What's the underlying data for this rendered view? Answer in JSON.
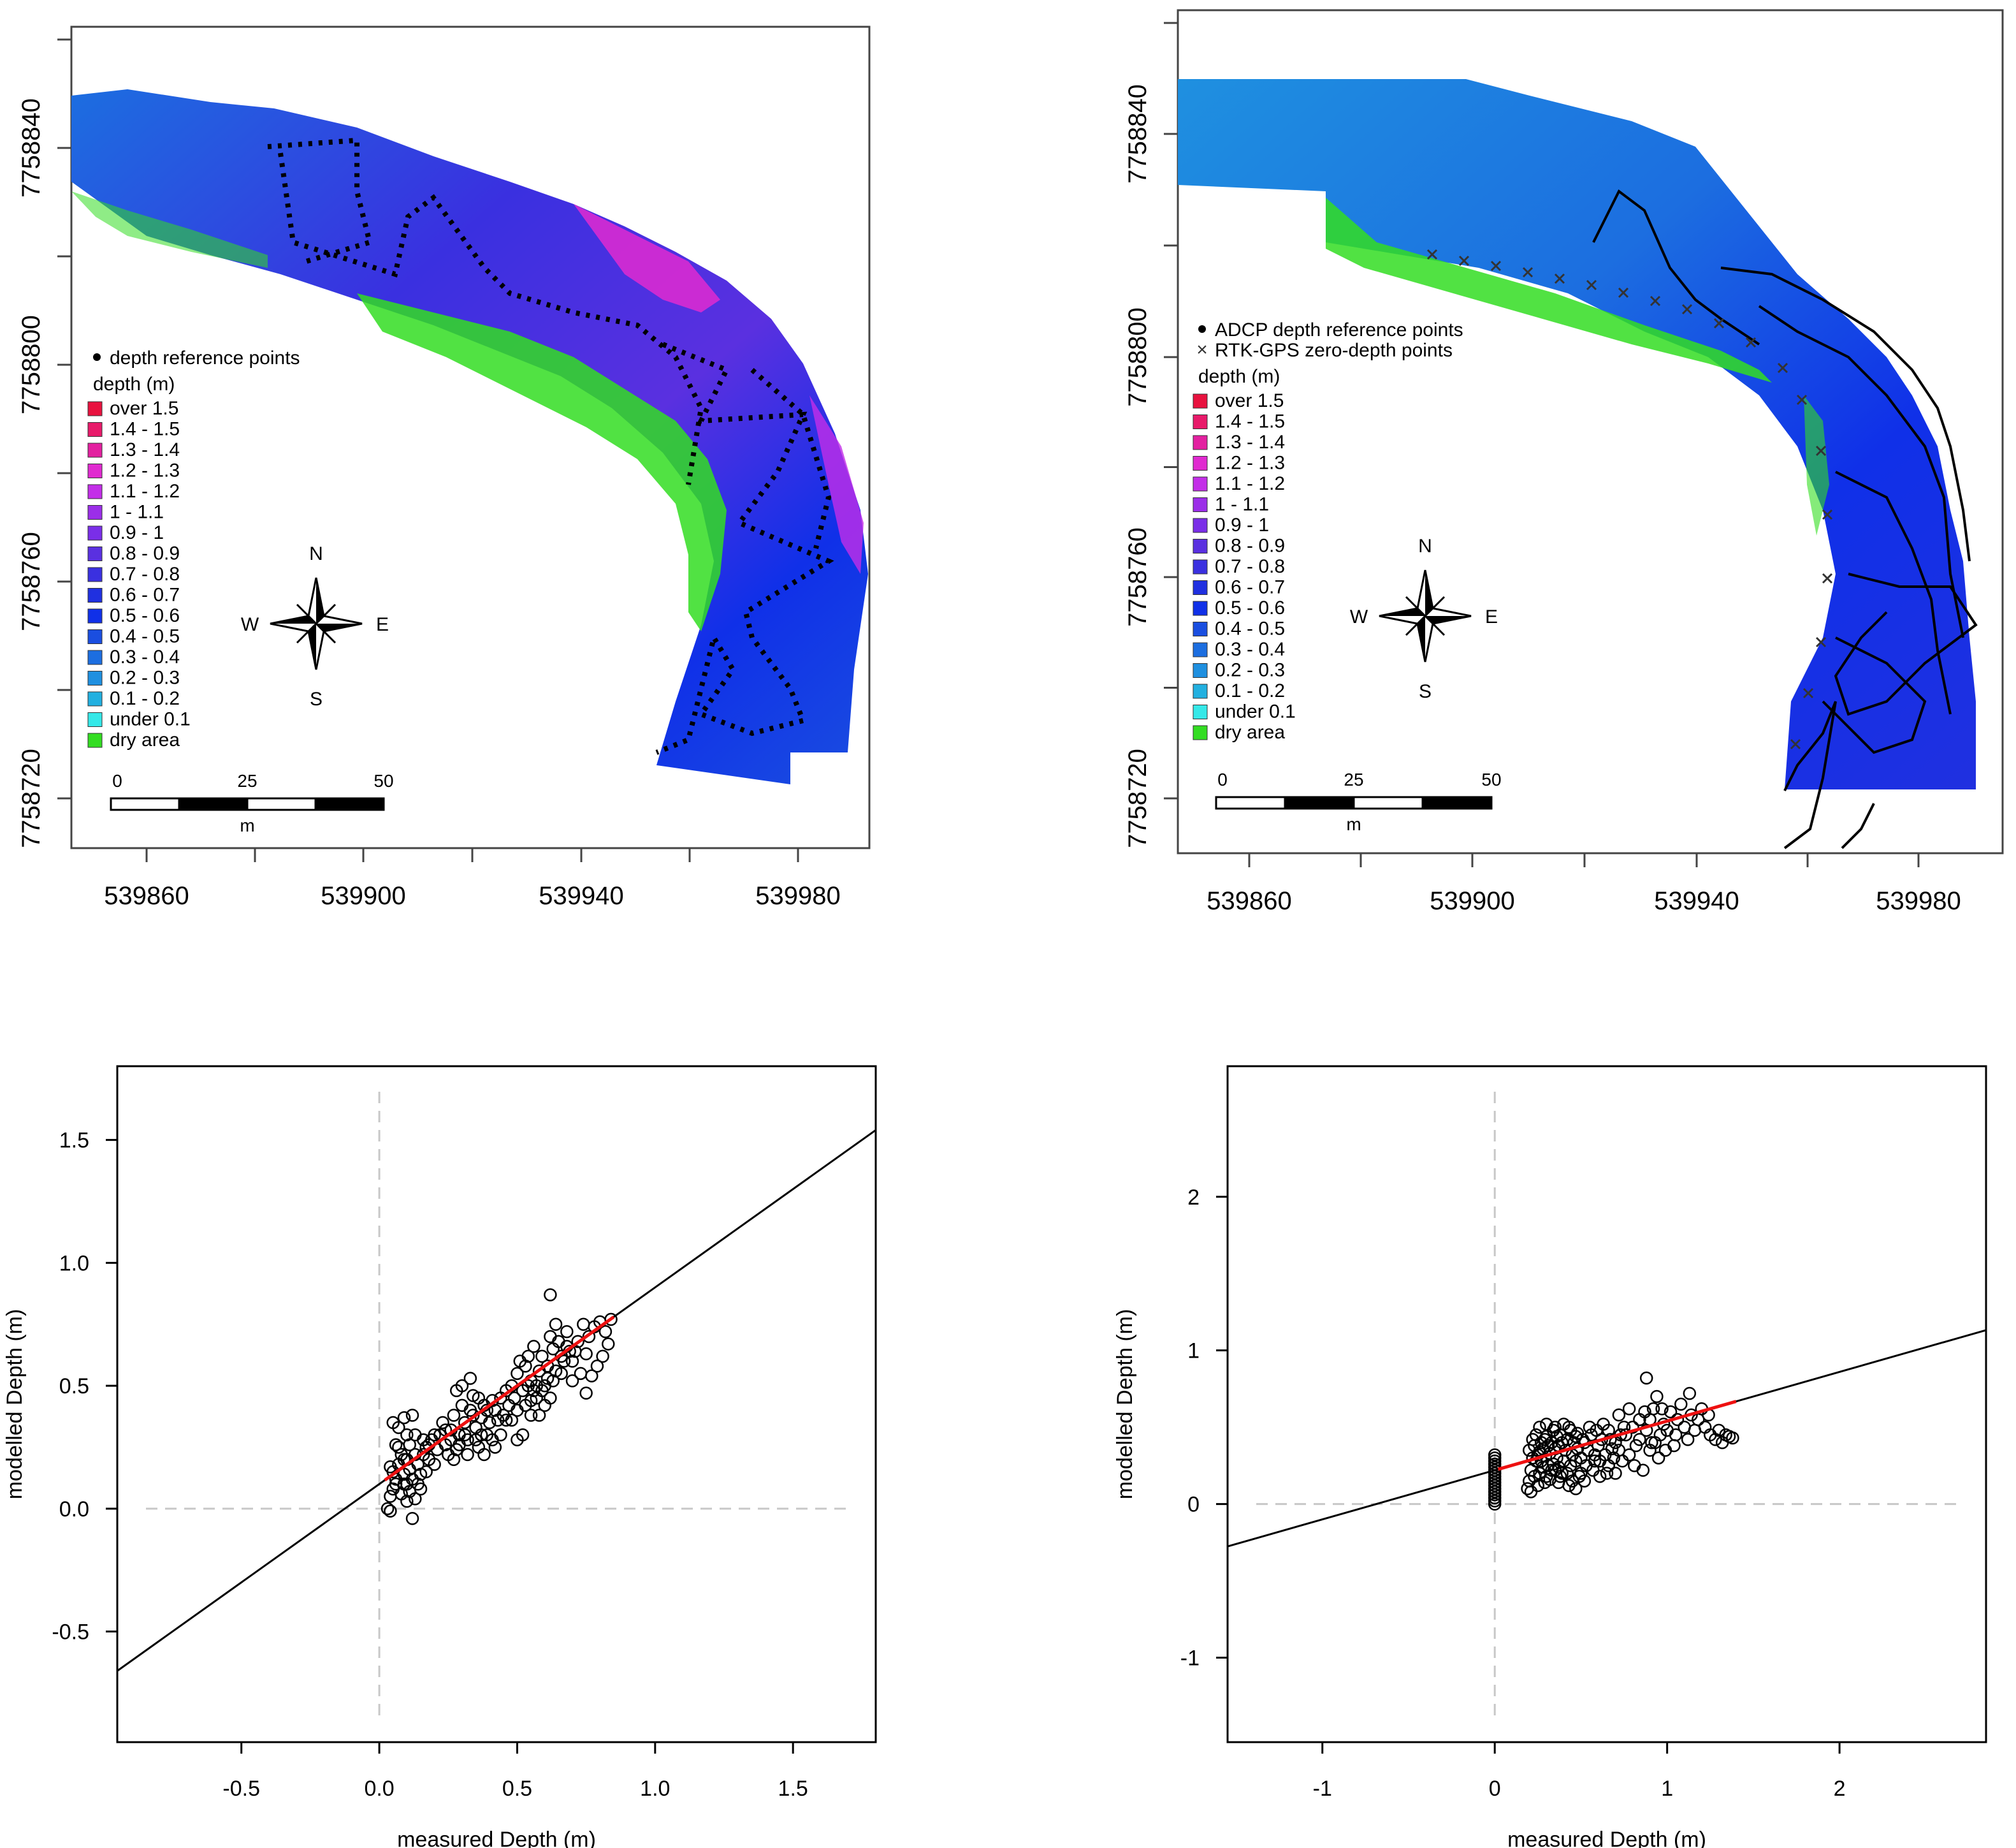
{
  "colors": {
    "over 1.5": "#e8123f",
    "1.4 - 1.5": "#e81a6a",
    "1.3 - 1.4": "#e320a0",
    "1.2 - 1.3": "#e02ad0",
    "1.1 - 1.2": "#c32ee8",
    "1 - 1.1": "#9b2ee8",
    "0.9 - 1": "#7a2ee8",
    "0.8 - 0.9": "#5a30e0",
    "0.7 - 0.8": "#3a30e0",
    "0.6 - 0.7": "#2030e0",
    "0.5 - 0.6": "#1030e8",
    "0.4 - 0.5": "#1a4ee0",
    "0.3 - 0.4": "#1c6ee0",
    "0.2 - 0.3": "#1f90e0",
    "0.1 - 0.2": "#22b0e0",
    "under 0.1": "#35e8e8",
    "dry area": "#33dd22",
    "fit_line": "#000000",
    "fit_segment": "#ee1111",
    "reference_lines": "#c8c8c8"
  },
  "maps": [
    {
      "id": "map-left",
      "legend_points": [
        "depth reference points"
      ],
      "legend_title": "depth (m)",
      "legend_items": [
        "over 1.5",
        "1.4 - 1.5",
        "1.3 - 1.4",
        "1.2 - 1.3",
        "1.1 - 1.2",
        "1 - 1.1",
        "0.9 - 1",
        "0.8 - 0.9",
        "0.7 - 0.8",
        "0.6 - 0.7",
        "0.5 - 0.6",
        "0.4 - 0.5",
        "0.3 - 0.4",
        "0.2 - 0.3",
        "0.1 - 0.2",
        "under 0.1",
        "dry area"
      ],
      "compass": {
        "n": "N",
        "s": "S",
        "e": "E",
        "w": "W"
      },
      "scalebar": {
        "labels": [
          "0",
          "25",
          "50"
        ],
        "unit": "m"
      },
      "x_ticks": [
        "539860",
        "539900",
        "539940",
        "539980"
      ],
      "y_ticks": [
        "7758720",
        "7758760",
        "7758800",
        "7758840"
      ]
    },
    {
      "id": "map-right",
      "legend_points": [
        "ADCP depth reference points",
        "RTK-GPS zero-depth points"
      ],
      "legend_title": "depth (m)",
      "legend_items": [
        "over 1.5",
        "1.4 - 1.5",
        "1.3 - 1.4",
        "1.2 - 1.3",
        "1.1 - 1.2",
        "1 - 1.1",
        "0.9 - 1",
        "0.8 - 0.9",
        "0.7 - 0.8",
        "0.6 - 0.7",
        "0.5 - 0.6",
        "0.4 - 0.5",
        "0.3 - 0.4",
        "0.2 - 0.3",
        "0.1 - 0.2",
        "under 0.1",
        "dry area"
      ],
      "compass": {
        "n": "N",
        "s": "S",
        "e": "E",
        "w": "W"
      },
      "scalebar": {
        "labels": [
          "0",
          "25",
          "50"
        ],
        "unit": "m"
      },
      "x_ticks": [
        "539860",
        "539900",
        "539940",
        "539980"
      ],
      "y_ticks": [
        "7758720",
        "7758760",
        "7758800",
        "7758840"
      ]
    }
  ],
  "chart_data": [
    {
      "type": "scatter",
      "title": "",
      "xlabel": "measured Depth (m)",
      "ylabel": "modelled Depth (m)",
      "xlim": [
        -0.95,
        1.8
      ],
      "ylim": [
        -0.95,
        1.8
      ],
      "x_ticks": [
        -0.5,
        0.0,
        0.5,
        1.0,
        1.5
      ],
      "y_ticks": [
        -0.5,
        0.0,
        0.5,
        1.0,
        1.5
      ],
      "x_tick_labels": [
        "-0.5",
        "0.0",
        "0.5",
        "1.0",
        "1.5"
      ],
      "y_tick_labels": [
        "-0.5",
        "0.0",
        "0.5",
        "1.0",
        "1.5"
      ],
      "fit_line": {
        "intercept": 0.1,
        "slope": 0.8
      },
      "fit_segment_x": [
        0.02,
        0.85
      ],
      "points": [
        [
          0.03,
          0.0
        ],
        [
          0.04,
          0.05
        ],
        [
          0.05,
          0.08
        ],
        [
          0.06,
          0.12
        ],
        [
          0.07,
          0.18
        ],
        [
          0.08,
          0.22
        ],
        [
          0.05,
          0.35
        ],
        [
          0.07,
          0.33
        ],
        [
          0.09,
          0.37
        ],
        [
          0.1,
          0.3
        ],
        [
          0.08,
          0.06
        ],
        [
          0.09,
          0.1
        ],
        [
          0.1,
          0.03
        ],
        [
          0.11,
          0.07
        ],
        [
          0.12,
          0.12
        ],
        [
          0.13,
          0.04
        ],
        [
          0.12,
          -0.04
        ],
        [
          0.14,
          0.1
        ],
        [
          0.1,
          0.2
        ],
        [
          0.11,
          0.26
        ],
        [
          0.12,
          0.38
        ],
        [
          0.13,
          0.3
        ],
        [
          0.14,
          0.18
        ],
        [
          0.15,
          0.14
        ],
        [
          0.16,
          0.22
        ],
        [
          0.17,
          0.25
        ],
        [
          0.18,
          0.2
        ],
        [
          0.19,
          0.28
        ],
        [
          0.2,
          0.18
        ],
        [
          0.21,
          0.24
        ],
        [
          0.06,
          0.26
        ],
        [
          0.04,
          0.17
        ],
        [
          0.09,
          0.14
        ],
        [
          0.15,
          0.08
        ],
        [
          0.17,
          0.15
        ],
        [
          0.22,
          0.3
        ],
        [
          0.23,
          0.35
        ],
        [
          0.24,
          0.26
        ],
        [
          0.25,
          0.22
        ],
        [
          0.26,
          0.32
        ],
        [
          0.27,
          0.38
        ],
        [
          0.28,
          0.24
        ],
        [
          0.29,
          0.3
        ],
        [
          0.3,
          0.42
        ],
        [
          0.31,
          0.35
        ],
        [
          0.32,
          0.28
        ],
        [
          0.33,
          0.4
        ],
        [
          0.34,
          0.46
        ],
        [
          0.35,
          0.33
        ],
        [
          0.36,
          0.25
        ],
        [
          0.37,
          0.37
        ],
        [
          0.38,
          0.42
        ],
        [
          0.39,
          0.3
        ],
        [
          0.4,
          0.35
        ],
        [
          0.41,
          0.28
        ],
        [
          0.42,
          0.4
        ],
        [
          0.43,
          0.36
        ],
        [
          0.44,
          0.45
        ],
        [
          0.45,
          0.38
        ],
        [
          0.46,
          0.48
        ],
        [
          0.28,
          0.48
        ],
        [
          0.3,
          0.5
        ],
        [
          0.33,
          0.53
        ],
        [
          0.36,
          0.45
        ],
        [
          0.38,
          0.22
        ],
        [
          0.42,
          0.25
        ],
        [
          0.35,
          0.28
        ],
        [
          0.32,
          0.22
        ],
        [
          0.27,
          0.2
        ],
        [
          0.29,
          0.26
        ],
        [
          0.47,
          0.42
        ],
        [
          0.48,
          0.5
        ],
        [
          0.49,
          0.45
        ],
        [
          0.5,
          0.55
        ],
        [
          0.51,
          0.6
        ],
        [
          0.52,
          0.48
        ],
        [
          0.53,
          0.58
        ],
        [
          0.54,
          0.62
        ],
        [
          0.55,
          0.52
        ],
        [
          0.56,
          0.66
        ],
        [
          0.5,
          0.4
        ],
        [
          0.48,
          0.36
        ],
        [
          0.52,
          0.3
        ],
        [
          0.5,
          0.28
        ],
        [
          0.55,
          0.44
        ],
        [
          0.57,
          0.5
        ],
        [
          0.58,
          0.56
        ],
        [
          0.59,
          0.62
        ],
        [
          0.6,
          0.5
        ],
        [
          0.61,
          0.58
        ],
        [
          0.62,
          0.7
        ],
        [
          0.63,
          0.65
        ],
        [
          0.64,
          0.75
        ],
        [
          0.62,
          0.87
        ],
        [
          0.65,
          0.68
        ],
        [
          0.66,
          0.55
        ],
        [
          0.67,
          0.6
        ],
        [
          0.68,
          0.72
        ],
        [
          0.69,
          0.64
        ],
        [
          0.7,
          0.6
        ],
        [
          0.6,
          0.42
        ],
        [
          0.62,
          0.45
        ],
        [
          0.58,
          0.38
        ],
        [
          0.63,
          0.52
        ],
        [
          0.64,
          0.56
        ],
        [
          0.72,
          0.68
        ],
        [
          0.74,
          0.75
        ],
        [
          0.75,
          0.63
        ],
        [
          0.76,
          0.7
        ],
        [
          0.78,
          0.74
        ],
        [
          0.8,
          0.76
        ],
        [
          0.82,
          0.72
        ],
        [
          0.84,
          0.77
        ],
        [
          0.83,
          0.67
        ],
        [
          0.81,
          0.62
        ],
        [
          0.79,
          0.58
        ],
        [
          0.77,
          0.54
        ],
        [
          0.75,
          0.47
        ],
        [
          0.73,
          0.55
        ],
        [
          0.71,
          0.64
        ],
        [
          0.44,
          0.3
        ],
        [
          0.46,
          0.36
        ],
        [
          0.41,
          0.44
        ],
        [
          0.39,
          0.4
        ],
        [
          0.37,
          0.3
        ],
        [
          0.34,
          0.38
        ],
        [
          0.31,
          0.3
        ],
        [
          0.26,
          0.28
        ],
        [
          0.24,
          0.32
        ],
        [
          0.2,
          0.3
        ],
        [
          0.18,
          0.26
        ],
        [
          0.16,
          0.28
        ],
        [
          0.13,
          0.22
        ],
        [
          0.11,
          0.16
        ],
        [
          0.1,
          0.1
        ],
        [
          0.09,
          0.2
        ],
        [
          0.07,
          0.25
        ],
        [
          0.06,
          0.1
        ],
        [
          0.05,
          0.15
        ],
        [
          0.04,
          -0.01
        ],
        [
          0.53,
          0.42
        ],
        [
          0.55,
          0.38
        ],
        [
          0.57,
          0.45
        ],
        [
          0.59,
          0.48
        ],
        [
          0.61,
          0.53
        ],
        [
          0.66,
          0.62
        ],
        [
          0.68,
          0.66
        ],
        [
          0.7,
          0.52
        ],
        [
          0.56,
          0.48
        ],
        [
          0.54,
          0.5
        ]
      ]
    },
    {
      "type": "scatter",
      "title": "",
      "xlabel": "measured Depth (m)",
      "ylabel": "modelled Depth (m)",
      "xlim": [
        -1.55,
        2.85
      ],
      "ylim": [
        -1.55,
        2.85
      ],
      "x_ticks": [
        -1,
        0,
        1,
        2
      ],
      "y_ticks": [
        -1,
        0,
        1,
        2
      ],
      "x_tick_labels": [
        "-1",
        "0",
        "1",
        "2"
      ],
      "y_tick_labels": [
        "-1",
        "0",
        "1",
        "2"
      ],
      "fit_line": {
        "intercept": 0.22,
        "slope": 0.32
      },
      "fit_segment_x": [
        0.02,
        1.4
      ],
      "points": [
        [
          0.0,
          0.0
        ],
        [
          0.0,
          0.04
        ],
        [
          0.0,
          0.08
        ],
        [
          0.0,
          0.12
        ],
        [
          0.0,
          0.16
        ],
        [
          0.0,
          0.2
        ],
        [
          0.0,
          0.24
        ],
        [
          0.0,
          0.28
        ],
        [
          0.0,
          0.32
        ],
        [
          0.0,
          0.1
        ],
        [
          0.0,
          0.02
        ],
        [
          0.0,
          0.06
        ],
        [
          0.0,
          0.14
        ],
        [
          0.0,
          0.18
        ],
        [
          0.0,
          0.22
        ],
        [
          0.0,
          0.26
        ],
        [
          0.0,
          0.3
        ],
        [
          0.19,
          0.1
        ],
        [
          0.2,
          0.15
        ],
        [
          0.21,
          0.22
        ],
        [
          0.22,
          0.3
        ],
        [
          0.23,
          0.38
        ],
        [
          0.24,
          0.45
        ],
        [
          0.25,
          0.12
        ],
        [
          0.26,
          0.2
        ],
        [
          0.27,
          0.28
        ],
        [
          0.28,
          0.36
        ],
        [
          0.29,
          0.42
        ],
        [
          0.3,
          0.18
        ],
        [
          0.31,
          0.25
        ],
        [
          0.32,
          0.33
        ],
        [
          0.33,
          0.4
        ],
        [
          0.34,
          0.48
        ],
        [
          0.35,
          0.22
        ],
        [
          0.36,
          0.3
        ],
        [
          0.37,
          0.38
        ],
        [
          0.38,
          0.45
        ],
        [
          0.39,
          0.2
        ],
        [
          0.4,
          0.28
        ],
        [
          0.41,
          0.35
        ],
        [
          0.42,
          0.42
        ],
        [
          0.43,
          0.5
        ],
        [
          0.44,
          0.25
        ],
        [
          0.45,
          0.32
        ],
        [
          0.46,
          0.4
        ],
        [
          0.47,
          0.28
        ],
        [
          0.48,
          0.36
        ],
        [
          0.2,
          0.35
        ],
        [
          0.22,
          0.42
        ],
        [
          0.24,
          0.28
        ],
        [
          0.26,
          0.34
        ],
        [
          0.28,
          0.24
        ],
        [
          0.3,
          0.44
        ],
        [
          0.32,
          0.16
        ],
        [
          0.34,
          0.26
        ],
        [
          0.36,
          0.44
        ],
        [
          0.38,
          0.18
        ],
        [
          0.21,
          0.08
        ],
        [
          0.23,
          0.18
        ],
        [
          0.25,
          0.32
        ],
        [
          0.27,
          0.4
        ],
        [
          0.29,
          0.14
        ],
        [
          0.31,
          0.38
        ],
        [
          0.33,
          0.22
        ],
        [
          0.35,
          0.36
        ],
        [
          0.37,
          0.24
        ],
        [
          0.39,
          0.4
        ],
        [
          0.5,
          0.3
        ],
        [
          0.52,
          0.4
        ],
        [
          0.54,
          0.35
        ],
        [
          0.56,
          0.45
        ],
        [
          0.58,
          0.28
        ],
        [
          0.6,
          0.38
        ],
        [
          0.62,
          0.42
        ],
        [
          0.64,
          0.32
        ],
        [
          0.66,
          0.48
        ],
        [
          0.68,
          0.36
        ],
        [
          0.5,
          0.2
        ],
        [
          0.53,
          0.25
        ],
        [
          0.57,
          0.22
        ],
        [
          0.61,
          0.18
        ],
        [
          0.65,
          0.2
        ],
        [
          0.55,
          0.5
        ],
        [
          0.59,
          0.48
        ],
        [
          0.63,
          0.52
        ],
        [
          0.67,
          0.42
        ],
        [
          0.69,
          0.3
        ],
        [
          0.7,
          0.4
        ],
        [
          0.72,
          0.35
        ],
        [
          0.74,
          0.28
        ],
        [
          0.76,
          0.45
        ],
        [
          0.78,
          0.32
        ],
        [
          0.8,
          0.5
        ],
        [
          0.82,
          0.38
        ],
        [
          0.84,
          0.42
        ],
        [
          0.86,
          0.22
        ],
        [
          0.88,
          0.48
        ],
        [
          0.9,
          0.55
        ],
        [
          0.92,
          0.62
        ],
        [
          0.94,
          0.7
        ],
        [
          0.96,
          0.45
        ],
        [
          0.98,
          0.52
        ],
        [
          1.0,
          0.48
        ],
        [
          1.02,
          0.6
        ],
        [
          1.04,
          0.38
        ],
        [
          1.06,
          0.55
        ],
        [
          1.08,
          0.65
        ],
        [
          0.72,
          0.58
        ],
        [
          0.75,
          0.5
        ],
        [
          0.78,
          0.62
        ],
        [
          0.81,
          0.25
        ],
        [
          0.84,
          0.55
        ],
        [
          0.87,
          0.6
        ],
        [
          0.9,
          0.35
        ],
        [
          0.93,
          0.4
        ],
        [
          0.95,
          0.3
        ],
        [
          0.97,
          0.62
        ],
        [
          1.1,
          0.5
        ],
        [
          1.12,
          0.42
        ],
        [
          1.14,
          0.58
        ],
        [
          1.16,
          0.48
        ],
        [
          1.18,
          0.55
        ],
        [
          1.2,
          0.62
        ],
        [
          1.22,
          0.5
        ],
        [
          1.25,
          0.45
        ],
        [
          1.28,
          0.42
        ],
        [
          1.3,
          0.48
        ],
        [
          1.32,
          0.4
        ],
        [
          1.34,
          0.45
        ],
        [
          1.36,
          0.44
        ],
        [
          1.38,
          0.43
        ],
        [
          1.13,
          0.72
        ],
        [
          1.05,
          0.45
        ],
        [
          0.99,
          0.35
        ],
        [
          0.88,
          0.82
        ],
        [
          0.91,
          0.4
        ],
        [
          1.24,
          0.58
        ],
        [
          0.43,
          0.12
        ],
        [
          0.45,
          0.15
        ],
        [
          0.47,
          0.1
        ],
        [
          0.49,
          0.18
        ],
        [
          0.52,
          0.15
        ],
        [
          0.58,
          0.32
        ],
        [
          0.61,
          0.28
        ],
        [
          0.66,
          0.25
        ],
        [
          0.7,
          0.2
        ],
        [
          0.73,
          0.45
        ],
        [
          0.26,
          0.5
        ],
        [
          0.3,
          0.52
        ],
        [
          0.35,
          0.5
        ],
        [
          0.4,
          0.52
        ],
        [
          0.44,
          0.48
        ],
        [
          0.48,
          0.46
        ],
        [
          0.51,
          0.42
        ],
        [
          0.47,
          0.44
        ],
        [
          0.42,
          0.2
        ],
        [
          0.37,
          0.14
        ]
      ]
    }
  ]
}
